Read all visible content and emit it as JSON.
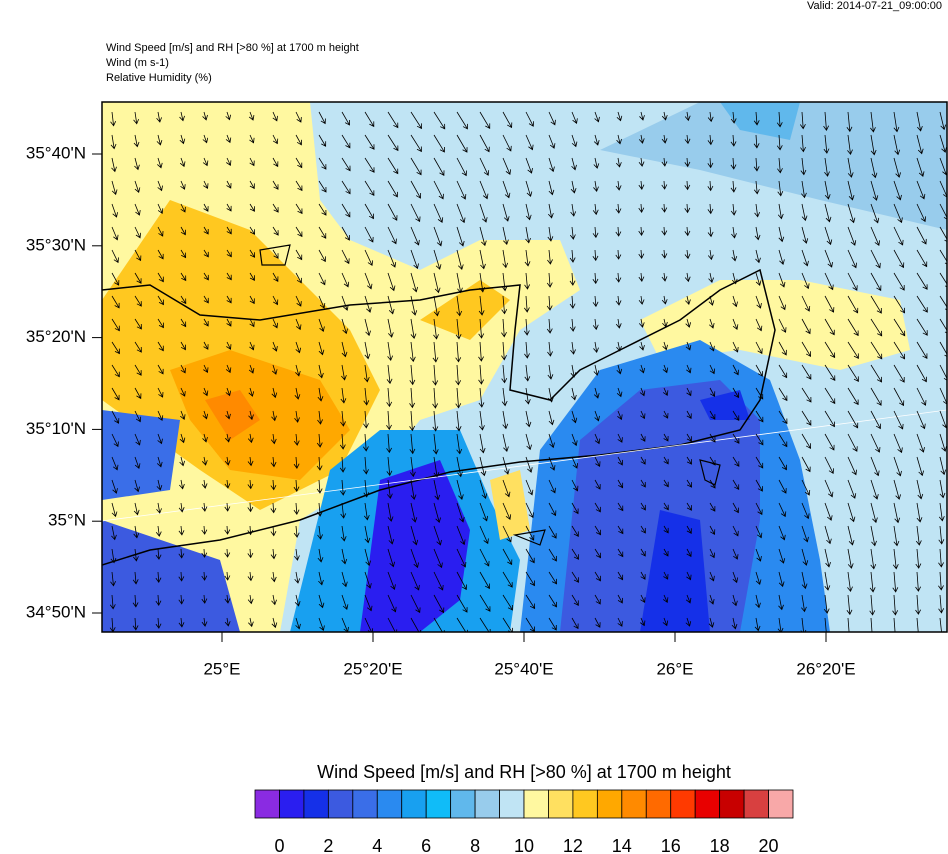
{
  "header": {
    "valid": "Valid: 2014-07-21_09:00:00",
    "title": "Wind Speed [m/s] and RH [>80 %] at 1700 m height",
    "wind": "Wind   (m s-1)",
    "rh": "Relative Humidity   (%)"
  },
  "map": {
    "lat_labels": [
      "35°40'N",
      "35°30'N",
      "35°20'N",
      "35°10'N",
      "35°N",
      "34°50'N"
    ],
    "lon_labels": [
      "25°E",
      "25°20'E",
      "25°40'E",
      "26°E",
      "26°20'E"
    ]
  },
  "colorbar": {
    "title": "Wind Speed [m/s] and RH [>80 %] at 1700 m height",
    "colors": [
      "#8a2be2",
      "#2a1ef0",
      "#1530e8",
      "#3c5ae0",
      "#3a6ee8",
      "#2a8af0",
      "#18a0f0",
      "#10bcf8",
      "#60b8ec",
      "#98ccec",
      "#c0e4f4",
      "#fff8a0",
      "#ffe060",
      "#ffc820",
      "#ffa800",
      "#ff8a00",
      "#ff6a00",
      "#ff3a00",
      "#e80000",
      "#c80000",
      "#d84040",
      "#f8a8a8"
    ],
    "lim": [
      -1,
      21
    ],
    "ticks": [
      0,
      2,
      4,
      6,
      8,
      10,
      12,
      14,
      16,
      18,
      20
    ]
  }
}
